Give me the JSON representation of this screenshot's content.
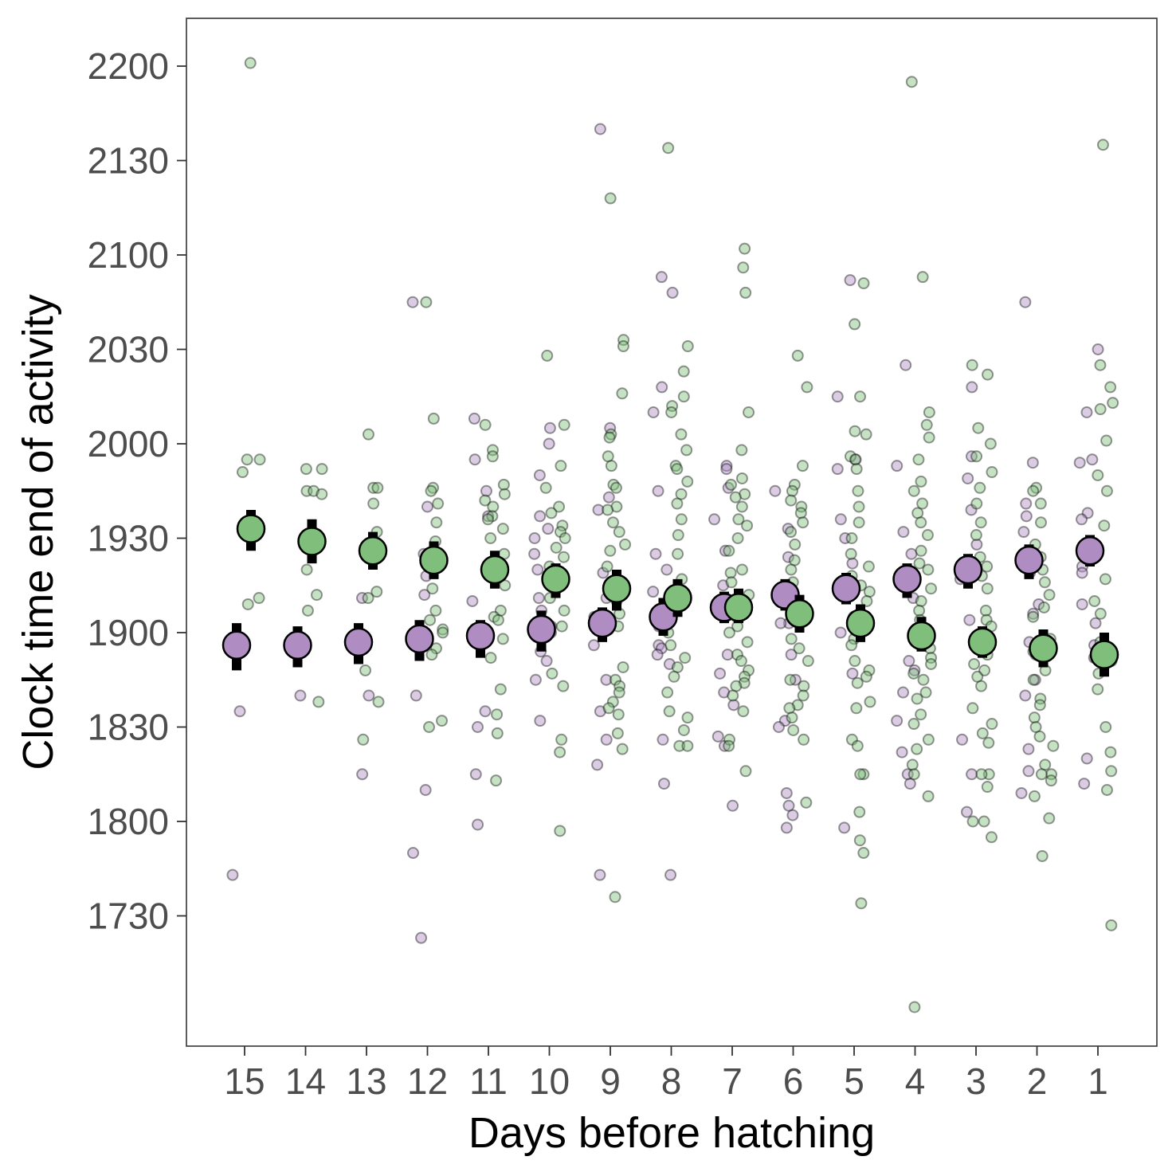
{
  "chart_data": {
    "type": "scatter",
    "xlabel": "Days before hatching",
    "ylabel": "Clock time end of activity",
    "categories": [
      "15",
      "14",
      "13",
      "12",
      "11",
      "10",
      "9",
      "8",
      "7",
      "6",
      "5",
      "4",
      "3",
      "2",
      "1"
    ],
    "y_ticks": [
      1730,
      1800,
      1830,
      1900,
      1930,
      2000,
      2030,
      2100,
      2130,
      2200
    ],
    "y_tick_labels": [
      "1730",
      "1800",
      "1830",
      "1900",
      "1930",
      "2000",
      "2030",
      "2100",
      "2130",
      "2200"
    ],
    "y_axis_note": "clock times (HHMM); ticks are equally spaced every 30 minutes",
    "ylim": [
      1630,
      2215
    ],
    "grid": false,
    "legend": "none",
    "colors": {
      "purple": "#af8dc3",
      "green": "#7fbf7b",
      "error_bar": "#000000"
    },
    "series": [
      {
        "color": "purple",
        "means": [
          1856,
          1856,
          1857,
          1858,
          1859,
          1901,
          1903,
          1905,
          1908,
          1912,
          1914,
          1917,
          1920,
          1923,
          1926
        ],
        "error_low": [
          1848,
          1849,
          1850,
          1851,
          1852,
          1854,
          1857,
          1859,
          1903,
          1907,
          1909,
          1911,
          1914,
          1917,
          1921
        ],
        "error_high": [
          1903,
          1902,
          1903,
          1904,
          1904,
          1907,
          1908,
          1911,
          1913,
          1917,
          1919,
          1922,
          1925,
          1928,
          1931
        ],
        "points": [
          [
            1835,
            1743
          ],
          [
            1840
          ],
          [
            1840,
            1815,
            1911
          ],
          [
            2045,
            1940,
            1925,
            1918,
            1912,
            1840,
            1810,
            1750,
            1723
          ],
          [
            1955,
            2008,
            1945,
            1937,
            1919,
            1910,
            1902,
            1835,
            1830,
            1815,
            1759
          ],
          [
            2005,
            2000,
            1950,
            1937,
            1933,
            1930,
            1925,
            1920,
            1911,
            1907,
            1902,
            1854,
            1851,
            1845,
            1832
          ],
          [
            2005,
            1943,
            1939,
            1919,
            1915,
            1911,
            1905,
            1902,
            1856,
            1845,
            1835,
            1826,
            1818,
            1743,
            2140
          ],
          [
            2053,
            2048,
            2018,
            2010,
            1945,
            1925,
            1920,
            1913,
            1902,
            1856,
            1855,
            1853,
            1850,
            1826,
            1812,
            1743
          ],
          [
            1953,
            1946,
            1936,
            1926,
            1915,
            1907,
            1853,
            1847,
            1841,
            1837,
            1827,
            1824,
            1805,
            1952
          ],
          [
            1945,
            1933,
            1924,
            1911,
            1907,
            1903,
            1903,
            1853,
            1845,
            1832,
            1830,
            1809,
            1805,
            1802,
            1758
          ],
          [
            2052,
            2015,
            1955,
            1952,
            1936,
            1930,
            1922,
            1916,
            1905,
            1900,
            1847,
            1758
          ],
          [
            2025,
            1953,
            1932,
            1925,
            1918,
            1911,
            1900,
            1851,
            1848,
            1841,
            1832,
            1822,
            1815,
            1812
          ],
          [
            2018,
            1956,
            1949,
            1939,
            1928,
            1922,
            1917,
            1904,
            1826,
            1815,
            1803
          ],
          [
            2045,
            1954,
            1941,
            1937,
            1932,
            1924,
            1922,
            1919,
            1909,
            1906,
            1857,
            1853,
            1845,
            1840,
            1823,
            1816,
            1809
          ],
          [
            2030,
            2010,
            1954,
            1955,
            1938,
            1936,
            1921,
            1919,
            1909,
            1903,
            1856,
            1852,
            1820,
            1812
          ]
        ]
      },
      {
        "color": "green",
        "means": [
          1933,
          1929,
          1926,
          1923,
          1920,
          1917,
          1914,
          1911,
          1908,
          1906,
          1903,
          1859,
          1857,
          1855,
          1853
        ],
        "error_low": [
          1926,
          1922,
          1920,
          1917,
          1914,
          1911,
          1907,
          1905,
          1903,
          1900,
          1857,
          1854,
          1852,
          1849,
          1846
        ],
        "error_high": [
          1939,
          1936,
          1932,
          1929,
          1926,
          1922,
          1920,
          1917,
          1914,
          1912,
          1909,
          1905,
          1902,
          1901,
          1900
        ],
        "points": [
          [
            2201,
            1955,
            1955,
            1951,
            1911,
            1909
          ],
          [
            1952,
            1952,
            1945,
            1945,
            1944,
            1920,
            1912,
            1907,
            1838
          ],
          [
            2003,
            1946,
            1946,
            1941,
            1932,
            1913,
            1911,
            1848,
            1838,
            1826
          ],
          [
            2045,
            2008,
            1946,
            1945,
            1941,
            1935,
            1929,
            1924,
            1920,
            1914,
            1907,
            1904,
            1901,
            1900,
            1855,
            1853,
            1832,
            1830
          ],
          [
            2006,
            1958,
            1956,
            1947,
            1944,
            1942,
            1940,
            1937,
            1936,
            1933,
            1930,
            1925,
            1920,
            1915,
            1907,
            1905,
            1904,
            1858,
            1852,
            1842,
            1834,
            1828,
            1813
          ],
          [
            2028,
            2006,
            1953,
            1946,
            1940,
            1938,
            1934,
            1932,
            1930,
            1927,
            1924,
            1921,
            1917,
            1911,
            1907,
            1902,
            1900,
            1847,
            1843,
            1826,
            1822,
            1757
          ],
          [
            2118,
            2033,
            2031,
            2016,
            2003,
            2002,
            1956,
            1953,
            1947,
            1946,
            1940,
            1939,
            1935,
            1932,
            1928,
            1926,
            1921,
            1916,
            1913,
            1910,
            1906,
            1902,
            1901,
            1849,
            1845,
            1843,
            1841,
            1838,
            1836,
            1834,
            1828,
            1823,
            1736
          ],
          [
            2134,
            2031,
            2023,
            2015,
            2012,
            2010,
            2003,
            1958,
            1953,
            1952,
            1948,
            1944,
            1941,
            1936,
            1931,
            1925,
            1917,
            1912,
            1909,
            1906,
            1900,
            1856,
            1852,
            1849,
            1846,
            1841,
            1835,
            1833,
            1829,
            1824,
            1824
          ],
          [
            2102,
            2056,
            2048,
            2010,
            1958,
            1949,
            1947,
            1944,
            1943,
            1940,
            1936,
            1934,
            1930,
            1926,
            1920,
            1919,
            1916,
            1912,
            1905,
            1902,
            1900,
            1857,
            1853,
            1851,
            1848,
            1846,
            1844,
            1843,
            1840,
            1835,
            1826,
            1824,
            1816
          ],
          [
            2028,
            2018,
            1953,
            1947,
            1945,
            1942,
            1940,
            1938,
            1935,
            1932,
            1928,
            1923,
            1920,
            1916,
            1912,
            1909,
            1905,
            1858,
            1855,
            1851,
            1845,
            1843,
            1840,
            1837,
            1836,
            1833,
            1829,
            1826,
            1806
          ],
          [
            2051,
            2038,
            2015,
            2004,
            2003,
            1956,
            1955,
            1952,
            1945,
            1940,
            1935,
            1930,
            1925,
            1921,
            1918,
            1915,
            1913,
            1910,
            1858,
            1856,
            1851,
            1848,
            1846,
            1844,
            1838,
            1836,
            1826,
            1824,
            1815,
            1815,
            1803,
            1754,
            1750,
            1734
          ],
          [
            2155,
            2053,
            2010,
            2006,
            2002,
            1955,
            1948,
            1945,
            1941,
            1938,
            1935,
            1931,
            1926,
            1922,
            1920,
            1914,
            1910,
            1907,
            1904,
            1900,
            1858,
            1855,
            1852,
            1850,
            1847,
            1845,
            1841,
            1839,
            1834,
            1831,
            1826,
            1823,
            1818,
            1815,
            1808,
            1701
          ],
          [
            2025,
            2022,
            2005,
            2000,
            1956,
            1951,
            1946,
            1941,
            1935,
            1931,
            1924,
            1921,
            1918,
            1914,
            1907,
            1904,
            1902,
            1858,
            1856,
            1853,
            1850,
            1848,
            1846,
            1843,
            1836,
            1831,
            1828,
            1825,
            1815,
            1815,
            1811,
            1800,
            1800,
            1755
          ],
          [
            1946,
            1945,
            1941,
            1935,
            1928,
            1924,
            1920,
            1916,
            1912,
            1908,
            1905,
            1858,
            1854,
            1848,
            1845,
            1839,
            1837,
            1833,
            1830,
            1827,
            1824,
            1818,
            1815,
            1815,
            1813,
            1808,
            1801,
            1749
          ],
          [
            2135,
            2025,
            2018,
            2013,
            2011,
            2001,
            1950,
            1945,
            1934,
            1917,
            1910,
            1906,
            1857,
            1851,
            1847,
            1842,
            1830,
            1822,
            1816,
            1810,
            1727
          ]
        ]
      }
    ]
  }
}
